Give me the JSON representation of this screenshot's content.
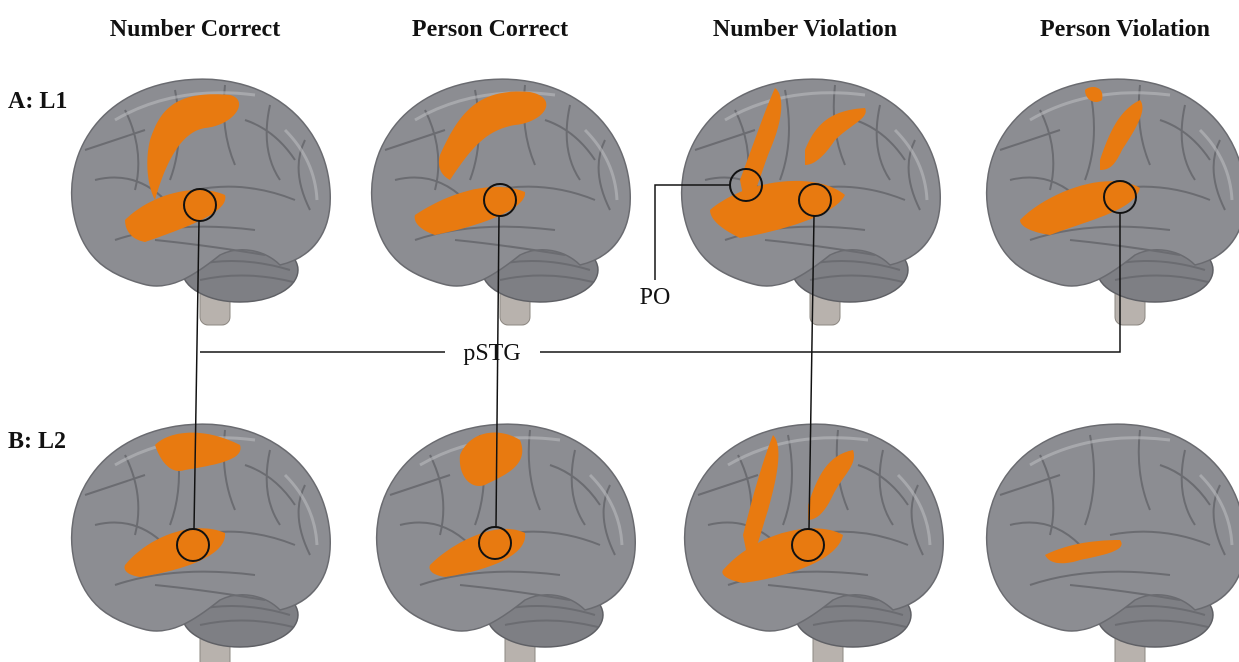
{
  "columns": [
    "Number Correct",
    "Person Correct",
    "Number Violation",
    "Person Violation"
  ],
  "rows": [
    "A: L1",
    "B: L2"
  ],
  "annotations": {
    "center": "pSTG",
    "left": "PO"
  }
}
